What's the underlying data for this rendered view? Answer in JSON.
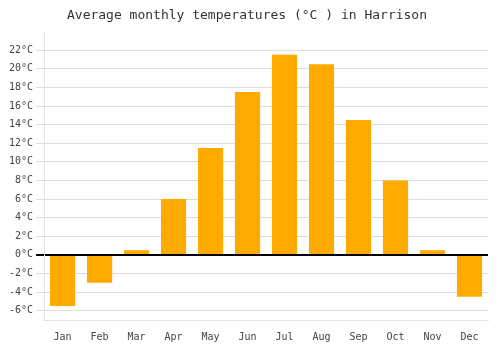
{
  "chart_data": {
    "type": "bar",
    "title": "Average monthly temperatures (°C ) in Harrison",
    "categories": [
      "Jan",
      "Feb",
      "Mar",
      "Apr",
      "May",
      "Jun",
      "Jul",
      "Aug",
      "Sep",
      "Oct",
      "Nov",
      "Dec"
    ],
    "values": [
      -5.5,
      -3.0,
      0.5,
      6.0,
      11.5,
      17.5,
      21.5,
      20.5,
      14.5,
      8.0,
      0.5,
      -4.5
    ],
    "color": "#FFAA00",
    "ylim": [
      -7,
      24
    ],
    "yticks": [
      {
        "value": -6,
        "label": "-6°C"
      },
      {
        "value": -4,
        "label": "-4°C"
      },
      {
        "value": -2,
        "label": "-2°C"
      },
      {
        "value": 0,
        "label": "0°C"
      },
      {
        "value": 2,
        "label": "2°C"
      },
      {
        "value": 4,
        "label": "4°C"
      },
      {
        "value": 6,
        "label": "6°C"
      },
      {
        "value": 8,
        "label": "8°C"
      },
      {
        "value": 10,
        "label": "10°C"
      },
      {
        "value": 12,
        "label": "12°C"
      },
      {
        "value": 14,
        "label": "14°C"
      },
      {
        "value": 16,
        "label": "16°C"
      },
      {
        "value": 18,
        "label": "18°C"
      },
      {
        "value": 20,
        "label": "20°C"
      },
      {
        "value": 22,
        "label": "22°C"
      }
    ],
    "grid": true
  }
}
